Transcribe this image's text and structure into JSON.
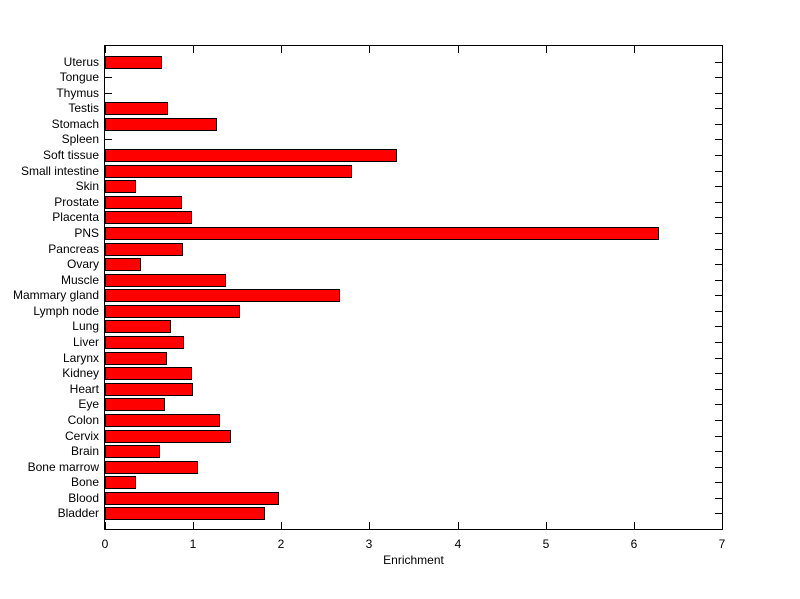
{
  "chart_data": {
    "type": "bar",
    "orientation": "horizontal",
    "title": "",
    "xlabel": "Enrichment",
    "ylabel": "",
    "xlim": [
      0,
      7
    ],
    "x_ticks": [
      0,
      1,
      2,
      3,
      4,
      5,
      6,
      7
    ],
    "grid": false,
    "legend": false,
    "colors": {
      "bar_fill": "#FF0000",
      "bar_edge": "#000000",
      "axis": "#000000",
      "background": "#FFFFFF"
    },
    "categories": [
      "Uterus",
      "Tongue",
      "Thymus",
      "Testis",
      "Stomach",
      "Spleen",
      "Soft tissue",
      "Small intestine",
      "Skin",
      "Prostate",
      "Placenta",
      "PNS",
      "Pancreas",
      "Ovary",
      "Muscle",
      "Mammary gland",
      "Lymph node",
      "Lung",
      "Liver",
      "Larynx",
      "Kidney",
      "Heart",
      "Eye",
      "Colon",
      "Cervix",
      "Brain",
      "Bone marrow",
      "Bone",
      "Blood",
      "Bladder"
    ],
    "values": [
      0.65,
      0,
      0,
      0.71,
      1.27,
      0,
      3.31,
      2.8,
      0.35,
      0.87,
      0.99,
      6.28,
      0.89,
      0.41,
      1.37,
      2.67,
      1.53,
      0.75,
      0.9,
      0.7,
      0.99,
      1.0,
      0.68,
      1.3,
      1.43,
      0.62,
      1.06,
      0.35,
      1.97,
      1.82
    ]
  }
}
